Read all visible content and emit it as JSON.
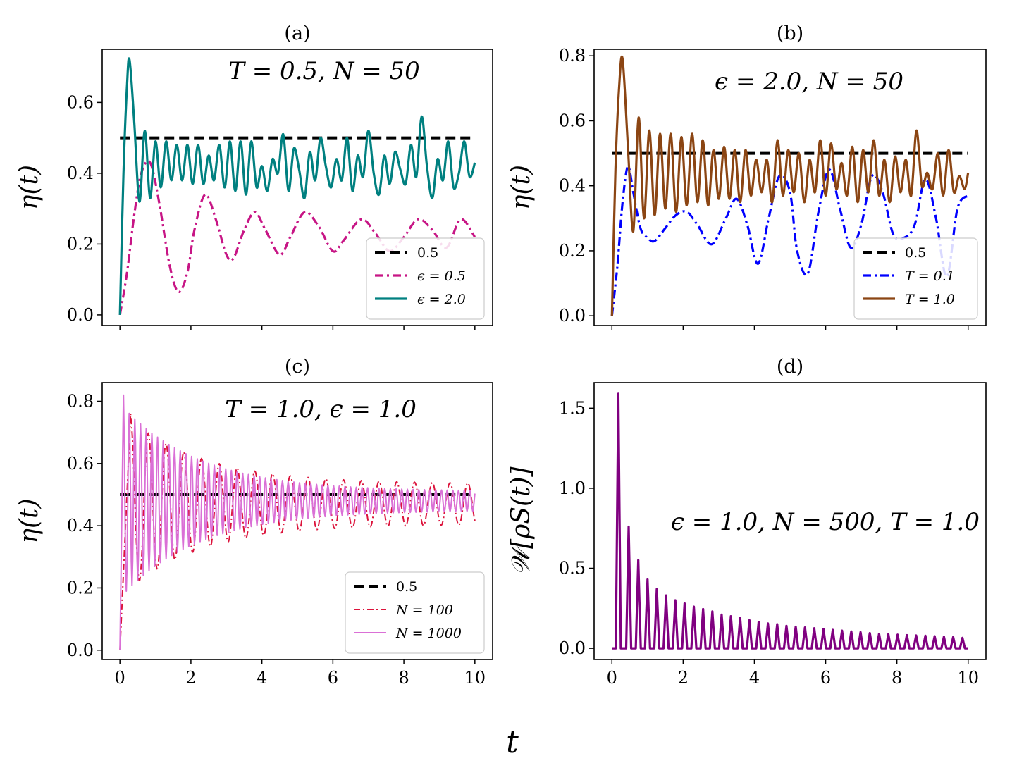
{
  "figure": {
    "xlabel": "t"
  },
  "chart_data": [
    {
      "id": "a",
      "type": "line",
      "title": "(a)",
      "ylabel": "η(t)",
      "annotation": "T = 0.5, N = 50",
      "xlim": [
        -0.5,
        10.5
      ],
      "ylim": [
        -0.03,
        0.75
      ],
      "xticks": [
        0,
        2,
        4,
        6,
        8,
        10
      ],
      "xticklabels": [
        "",
        "",
        "",
        "",
        "",
        ""
      ],
      "yticks": [
        0.0,
        0.2,
        0.4,
        0.6
      ],
      "yticklabels": [
        "0.0",
        "0.2",
        "0.4",
        "0.6"
      ],
      "legend_position": "lower-right",
      "series": [
        {
          "name": "0.5",
          "legend_label": "0.5",
          "style": "dashed",
          "color": "#000000",
          "x": [
            0,
            10
          ],
          "y": [
            0.5,
            0.5
          ]
        },
        {
          "name": "epsilon-0.5",
          "legend_label": "ϵ = 0.5",
          "style": "dashdot",
          "color": "#c71585",
          "x": [
            0,
            0.2,
            0.4,
            0.6,
            0.85,
            1.1,
            1.4,
            1.65,
            1.9,
            2.1,
            2.4,
            2.7,
            3.0,
            3.2,
            3.5,
            3.8,
            4.1,
            4.5,
            4.8,
            5.2,
            5.6,
            6.0,
            6.3,
            6.8,
            7.2,
            7.6,
            8.0,
            8.4,
            8.8,
            9.2,
            9.6,
            10.0
          ],
          "y": [
            0.0,
            0.12,
            0.28,
            0.4,
            0.43,
            0.32,
            0.14,
            0.065,
            0.12,
            0.24,
            0.34,
            0.27,
            0.17,
            0.16,
            0.24,
            0.29,
            0.24,
            0.17,
            0.22,
            0.29,
            0.25,
            0.18,
            0.21,
            0.27,
            0.23,
            0.18,
            0.22,
            0.27,
            0.24,
            0.19,
            0.27,
            0.22
          ]
        },
        {
          "name": "epsilon-2.0",
          "legend_label": "ϵ = 2.0",
          "style": "solid",
          "color": "#008080",
          "x": [
            0,
            0.1,
            0.2,
            0.27,
            0.4,
            0.55,
            0.7,
            0.85,
            1.0,
            1.15,
            1.3,
            1.45,
            1.6,
            1.75,
            1.9,
            2.05,
            2.2,
            2.35,
            2.5,
            2.65,
            2.8,
            2.95,
            3.1,
            3.25,
            3.4,
            3.55,
            3.7,
            3.85,
            4.0,
            4.15,
            4.3,
            4.45,
            4.6,
            4.75,
            4.9,
            5.05,
            5.2,
            5.35,
            5.5,
            5.65,
            5.8,
            5.95,
            6.1,
            6.25,
            6.4,
            6.55,
            6.7,
            6.85,
            7.0,
            7.15,
            7.3,
            7.45,
            7.6,
            7.75,
            7.9,
            8.05,
            8.2,
            8.35,
            8.5,
            8.65,
            8.8,
            8.95,
            9.1,
            9.25,
            9.4,
            9.55,
            9.7,
            9.85,
            10.0
          ],
          "y": [
            0.0,
            0.4,
            0.65,
            0.72,
            0.55,
            0.32,
            0.52,
            0.33,
            0.49,
            0.36,
            0.49,
            0.38,
            0.48,
            0.38,
            0.48,
            0.37,
            0.48,
            0.37,
            0.45,
            0.38,
            0.48,
            0.36,
            0.49,
            0.35,
            0.49,
            0.34,
            0.49,
            0.36,
            0.42,
            0.35,
            0.44,
            0.4,
            0.51,
            0.35,
            0.47,
            0.41,
            0.33,
            0.46,
            0.38,
            0.5,
            0.42,
            0.36,
            0.44,
            0.38,
            0.5,
            0.35,
            0.45,
            0.39,
            0.52,
            0.4,
            0.34,
            0.45,
            0.37,
            0.46,
            0.41,
            0.37,
            0.48,
            0.39,
            0.56,
            0.42,
            0.33,
            0.44,
            0.38,
            0.49,
            0.36,
            0.4,
            0.49,
            0.39,
            0.43
          ]
        }
      ]
    },
    {
      "id": "b",
      "type": "line",
      "title": "(b)",
      "ylabel": "η(t)",
      "annotation": "ϵ = 2.0, N = 50",
      "xlim": [
        -0.5,
        10.5
      ],
      "ylim": [
        -0.03,
        0.82
      ],
      "xticks": [
        0,
        2,
        4,
        6,
        8,
        10
      ],
      "xticklabels": [
        "",
        "",
        "",
        "",
        "",
        ""
      ],
      "yticks": [
        0.0,
        0.2,
        0.4,
        0.6,
        0.8
      ],
      "yticklabels": [
        "0.0",
        "0.2",
        "0.4",
        "0.6",
        "0.8"
      ],
      "legend_position": "lower-right",
      "series": [
        {
          "name": "0.5",
          "legend_label": "0.5",
          "style": "dashed",
          "color": "#000000",
          "x": [
            0,
            10
          ],
          "y": [
            0.5,
            0.5
          ]
        },
        {
          "name": "T-0.1",
          "legend_label": "T = 0.1",
          "style": "dashdot",
          "color": "#0000ff",
          "x": [
            0,
            0.15,
            0.3,
            0.45,
            0.6,
            0.8,
            1.0,
            1.2,
            1.5,
            1.8,
            2.1,
            2.4,
            2.8,
            3.2,
            3.5,
            3.8,
            4.1,
            4.4,
            4.7,
            5.0,
            5.2,
            5.5,
            5.8,
            6.1,
            6.4,
            6.7,
            7.0,
            7.3,
            7.6,
            7.9,
            8.2,
            8.5,
            8.8,
            9.1,
            9.4,
            9.7,
            10.0
          ],
          "y": [
            0.0,
            0.15,
            0.35,
            0.46,
            0.38,
            0.27,
            0.24,
            0.23,
            0.27,
            0.31,
            0.32,
            0.28,
            0.22,
            0.3,
            0.36,
            0.28,
            0.16,
            0.3,
            0.43,
            0.38,
            0.2,
            0.13,
            0.32,
            0.45,
            0.33,
            0.21,
            0.28,
            0.43,
            0.38,
            0.25,
            0.24,
            0.28,
            0.42,
            0.3,
            0.12,
            0.33,
            0.37
          ]
        },
        {
          "name": "T-1.0",
          "legend_label": "T = 1.0",
          "style": "solid",
          "color": "#8b4513",
          "x": [
            0,
            0.1,
            0.2,
            0.3,
            0.45,
            0.6,
            0.75,
            0.9,
            1.05,
            1.2,
            1.35,
            1.5,
            1.65,
            1.8,
            1.95,
            2.1,
            2.25,
            2.4,
            2.55,
            2.7,
            2.85,
            3.0,
            3.15,
            3.3,
            3.45,
            3.6,
            3.75,
            3.9,
            4.05,
            4.2,
            4.35,
            4.5,
            4.65,
            4.8,
            4.95,
            5.1,
            5.25,
            5.4,
            5.55,
            5.7,
            5.85,
            6.0,
            6.15,
            6.3,
            6.45,
            6.6,
            6.75,
            6.9,
            7.05,
            7.2,
            7.35,
            7.5,
            7.65,
            7.8,
            7.95,
            8.1,
            8.25,
            8.4,
            8.55,
            8.7,
            8.85,
            9.0,
            9.15,
            9.3,
            9.45,
            9.6,
            9.75,
            9.9,
            10.0
          ],
          "y": [
            0.0,
            0.45,
            0.7,
            0.79,
            0.52,
            0.26,
            0.61,
            0.3,
            0.57,
            0.31,
            0.56,
            0.33,
            0.56,
            0.32,
            0.55,
            0.34,
            0.56,
            0.35,
            0.54,
            0.34,
            0.51,
            0.36,
            0.52,
            0.36,
            0.51,
            0.35,
            0.51,
            0.37,
            0.48,
            0.38,
            0.48,
            0.35,
            0.54,
            0.37,
            0.51,
            0.38,
            0.5,
            0.35,
            0.48,
            0.38,
            0.54,
            0.37,
            0.53,
            0.39,
            0.47,
            0.37,
            0.52,
            0.35,
            0.51,
            0.38,
            0.54,
            0.37,
            0.48,
            0.35,
            0.49,
            0.38,
            0.48,
            0.37,
            0.57,
            0.4,
            0.44,
            0.39,
            0.5,
            0.37,
            0.51,
            0.38,
            0.43,
            0.39,
            0.44
          ]
        }
      ]
    },
    {
      "id": "c",
      "type": "line",
      "title": "(c)",
      "ylabel": "η(t)",
      "annotation": "T = 1.0, ϵ = 1.0",
      "xlim": [
        -0.5,
        10.5
      ],
      "ylim": [
        -0.03,
        0.86
      ],
      "xticks": [
        0,
        2,
        4,
        6,
        8,
        10
      ],
      "xticklabels": [
        "0",
        "2",
        "4",
        "6",
        "8",
        "10"
      ],
      "yticks": [
        0.0,
        0.2,
        0.4,
        0.6,
        0.8
      ],
      "yticklabels": [
        "0.0",
        "0.2",
        "0.4",
        "0.6",
        "0.8"
      ],
      "legend_position": "lower-right",
      "series": [
        {
          "name": "0.5",
          "legend_label": "0.5",
          "style": "dashed",
          "color": "#000000",
          "x": [
            0,
            10
          ],
          "y": [
            0.5,
            0.5
          ]
        },
        {
          "name": "N-100",
          "legend_label": "N = 100",
          "style": "dashdot-thin",
          "color": "#dc143c",
          "params": {
            "t0": 0.3,
            "peak": 0.76,
            "mean": 0.47,
            "amp0": 0.27,
            "amp_end": 0.065,
            "period": 0.5
          },
          "x": [],
          "y": []
        },
        {
          "name": "N-1000",
          "legend_label": "N = 1000",
          "style": "solid-thin",
          "color": "#da70d6",
          "params": {
            "t0": 0.1,
            "peak": 0.82,
            "mean": 0.48,
            "amp0": 0.3,
            "amp_end": 0.03,
            "period": 0.16
          },
          "x": [],
          "y": []
        }
      ]
    },
    {
      "id": "d",
      "type": "line",
      "title": "(d)",
      "ylabel": "𝒲[ρS(t)]",
      "annotation": "ϵ = 1.0, N = 500, T = 1.0",
      "xlim": [
        -0.5,
        10.5
      ],
      "ylim": [
        -0.07,
        1.66
      ],
      "xticks": [
        0,
        2,
        4,
        6,
        8,
        10
      ],
      "xticklabels": [
        "0",
        "2",
        "4",
        "6",
        "8",
        "10"
      ],
      "yticks": [
        0.0,
        0.5,
        1.0,
        1.5
      ],
      "yticklabels": [
        "0.0",
        "0.5",
        "1.0",
        "1.5"
      ],
      "series": [
        {
          "name": "W",
          "legend_label": "",
          "style": "solid",
          "color": "#800080",
          "peaks_x": [
            0.18,
            0.47,
            0.74,
            1.0,
            1.26,
            1.52,
            1.78,
            2.04,
            2.3,
            2.56,
            2.82,
            3.08,
            3.34,
            3.6,
            3.86,
            4.12,
            4.38,
            4.64,
            4.9,
            5.16,
            5.42,
            5.68,
            5.94,
            6.2,
            6.46,
            6.72,
            6.98,
            7.24,
            7.5,
            7.76,
            8.02,
            8.28,
            8.54,
            8.8,
            9.06,
            9.32,
            9.58,
            9.84
          ],
          "peaks_y": [
            1.59,
            0.76,
            0.55,
            0.43,
            0.37,
            0.33,
            0.3,
            0.28,
            0.26,
            0.245,
            0.23,
            0.21,
            0.2,
            0.19,
            0.175,
            0.165,
            0.155,
            0.15,
            0.14,
            0.135,
            0.13,
            0.125,
            0.12,
            0.115,
            0.11,
            0.105,
            0.1,
            0.095,
            0.09,
            0.088,
            0.085,
            0.082,
            0.08,
            0.078,
            0.075,
            0.072,
            0.07,
            0.065
          ]
        }
      ]
    }
  ]
}
